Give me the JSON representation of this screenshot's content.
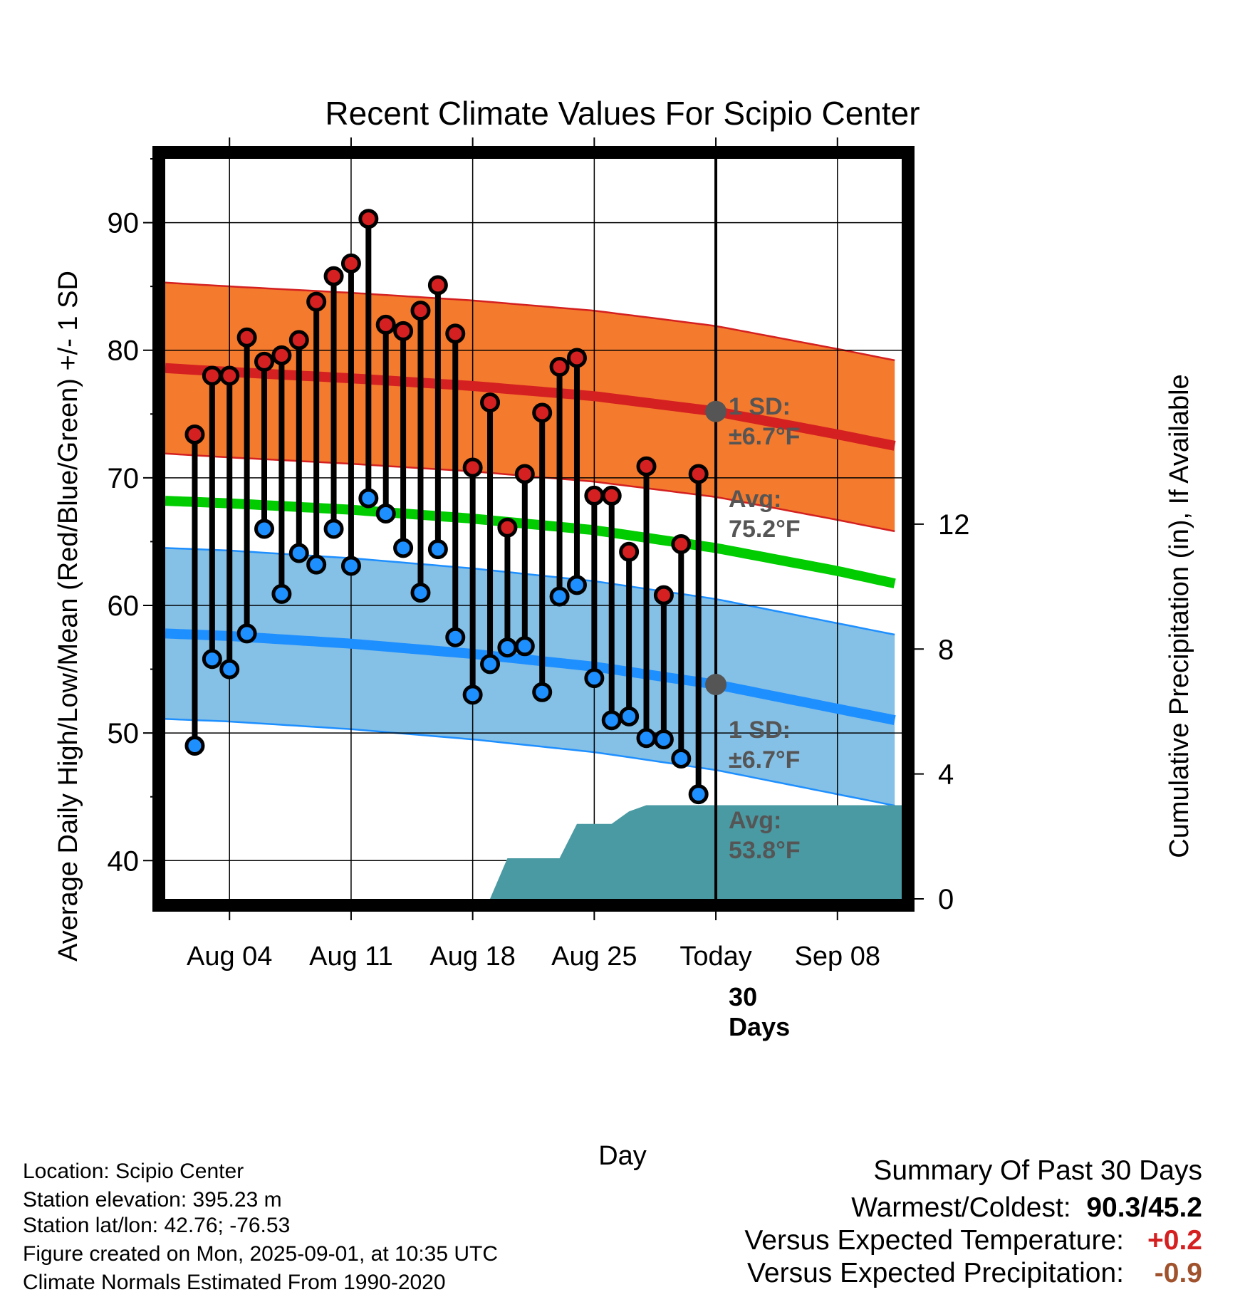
{
  "title": "Recent Climate Values For Scipio Center",
  "y_label": "Average Daily High/Low/Mean (Red/Blue/Green) +/- 1 SD",
  "y2_label": "Cumulative Precipitation (in), If Available",
  "x_label": "Day",
  "annotations": {
    "high_sd": [
      "1 SD:",
      "±6.7°F"
    ],
    "high_avg": [
      "Avg:",
      "75.2°F"
    ],
    "low_sd": [
      "1 SD:",
      "±6.7°F"
    ],
    "low_avg": [
      "Avg:",
      "53.8°F"
    ],
    "days": [
      "30",
      "Days"
    ]
  },
  "colors": {
    "high_band": "#f47a2e",
    "high_line": "#d42020",
    "mean_line": "#00cc00",
    "low_band": "#85c0e6",
    "low_line": "#1e8fff",
    "precip": "#4a9aa3",
    "high_dot": "#d42020",
    "low_dot": "#1e8fff",
    "annotation": "#555555"
  },
  "meta": [
    "Location: Scipio Center",
    "Station elevation: 395.23 m",
    "Station lat/lon: 42.76; -76.53",
    "Figure created on Mon, 2025-09-01, at 10:35 UTC",
    "Climate Normals Estimated From 1990-2020"
  ],
  "summary": {
    "heading": "Summary Of Past 30 Days",
    "warmest_label": "Warmest/Coldest:",
    "warmest_value": "90.3/45.2",
    "temp_label": "Versus Expected Temperature:",
    "temp_value": "+0.2",
    "temp_color": "#d42020",
    "precip_label": "Versus Expected Precipitation:",
    "precip_value": "-0.9",
    "precip_color": "#a0522d"
  },
  "chart_data": {
    "type": "line",
    "x_ticks": [
      "Aug 04",
      "Aug 11",
      "Aug 18",
      "Aug 25",
      "Today",
      "Sep 08"
    ],
    "x_tick_days": [
      4,
      11,
      18,
      25,
      32,
      39
    ],
    "x_range_days": [
      0.3,
      42.7
    ],
    "today_day": 32,
    "ylim": [
      37,
      95
    ],
    "y_ticks": [
      40,
      50,
      60,
      70,
      80,
      90
    ],
    "y2lim": [
      0,
      23.7
    ],
    "y2_ticks": [
      0,
      4,
      8,
      12
    ],
    "days": [
      2,
      3,
      4,
      5,
      6,
      7,
      8,
      9,
      10,
      11,
      12,
      13,
      14,
      15,
      16,
      17,
      18,
      19,
      20,
      21,
      22,
      23,
      24,
      25,
      26,
      27,
      28,
      29,
      30,
      31
    ],
    "highs": [
      73.4,
      78.0,
      78.0,
      81.0,
      79.1,
      79.6,
      80.8,
      83.8,
      85.8,
      86.8,
      90.3,
      82.0,
      81.5,
      83.1,
      85.1,
      81.3,
      70.8,
      75.9,
      66.1,
      70.3,
      75.1,
      78.7,
      79.4,
      68.6,
      68.6,
      64.2,
      70.9,
      60.8,
      64.8,
      70.3
    ],
    "lows": [
      49.0,
      55.8,
      55.0,
      57.8,
      66.0,
      60.9,
      64.1,
      63.2,
      66.0,
      63.1,
      68.4,
      67.2,
      64.5,
      61.0,
      64.4,
      57.5,
      53.0,
      55.4,
      56.7,
      56.8,
      53.2,
      60.7,
      61.6,
      54.3,
      51.0,
      51.3,
      49.6,
      49.5,
      48.0,
      45.2
    ],
    "normals_days": [
      0.3,
      4,
      11,
      18,
      25,
      32,
      39,
      42.7
    ],
    "normal_high": [
      78.6,
      78.3,
      77.8,
      77.2,
      76.4,
      75.2,
      73.4,
      72.4
    ],
    "normal_mean": [
      68.2,
      68.0,
      67.5,
      66.8,
      65.9,
      64.5,
      62.7,
      61.6
    ],
    "normal_low": [
      57.8,
      57.6,
      57.0,
      56.2,
      55.2,
      53.8,
      51.9,
      50.9
    ],
    "sd": 6.7,
    "precip": [
      {
        "day": 19.0,
        "in": 0
      },
      {
        "day": 20.0,
        "in": 1.3
      },
      {
        "day": 23.0,
        "in": 1.3
      },
      {
        "day": 24.0,
        "in": 2.4
      },
      {
        "day": 26.0,
        "in": 2.4
      },
      {
        "day": 27.0,
        "in": 2.8
      },
      {
        "day": 28.0,
        "in": 3.0
      },
      {
        "day": 42.7,
        "in": 3.0
      }
    ]
  }
}
